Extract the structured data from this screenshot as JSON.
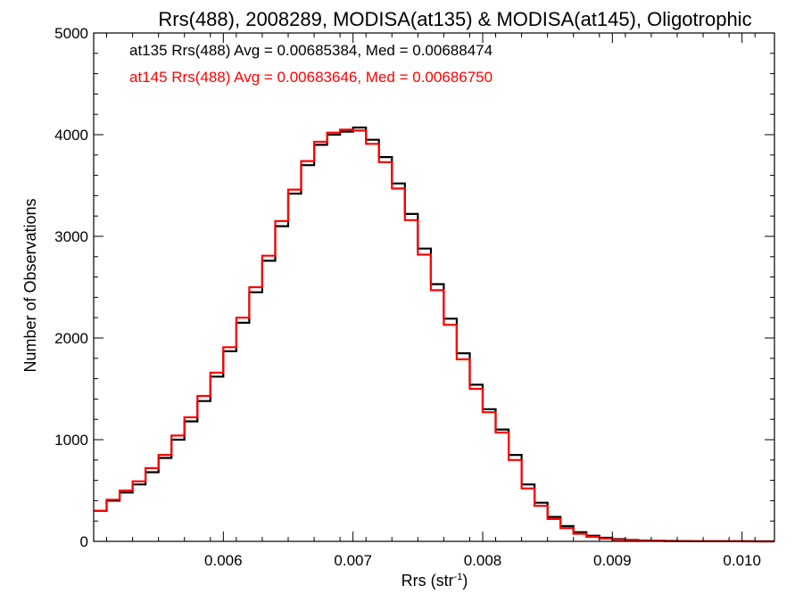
{
  "chart_data": {
    "type": "line",
    "title": "Rrs(488), 2008289, MODISA(at135) & MODISA(at145), Oligotrophic",
    "xlabel": "Rrs (str",
    "xlabel_superscript": "-1",
    "xlabel_suffix": ")",
    "ylabel": "Number of Observations",
    "xlim": [
      0.005,
      0.01025
    ],
    "ylim": [
      0,
      5000
    ],
    "xticks": [
      0.006,
      0.007,
      0.008,
      0.009,
      0.01
    ],
    "xtick_labels": [
      "0.006",
      "0.007",
      "0.008",
      "0.009",
      "0.010"
    ],
    "yticks": [
      0,
      1000,
      2000,
      3000,
      4000,
      5000
    ],
    "ytick_labels": [
      "0",
      "1000",
      "2000",
      "3000",
      "4000",
      "5000"
    ],
    "grid": false,
    "annotations": [
      {
        "text": "at135 Rrs(488) Avg = 0.00685384, Med = 0.00688474",
        "color": "#000000"
      },
      {
        "text": "at145 Rrs(488) Avg = 0.00683646, Med = 0.00686750",
        "color": "#ff0000"
      }
    ],
    "series": [
      {
        "name": "at135",
        "color": "#000000",
        "x": [
          0.005,
          0.0051,
          0.0052,
          0.0053,
          0.0054,
          0.0055,
          0.0056,
          0.0057,
          0.0058,
          0.0059,
          0.006,
          0.0061,
          0.0062,
          0.0063,
          0.0064,
          0.0065,
          0.0066,
          0.0067,
          0.0068,
          0.0069,
          0.007,
          0.0071,
          0.0072,
          0.0073,
          0.0074,
          0.0075,
          0.0076,
          0.0077,
          0.0078,
          0.0079,
          0.008,
          0.0081,
          0.0082,
          0.0083,
          0.0084,
          0.0085,
          0.0086,
          0.0087,
          0.0088,
          0.0089,
          0.009,
          0.0091,
          0.0092,
          0.0093,
          0.0094,
          0.0095,
          0.0096,
          0.0097,
          0.0098,
          0.0099,
          0.01,
          0.0101,
          0.0102
        ],
        "y": [
          300,
          400,
          480,
          560,
          680,
          820,
          1000,
          1180,
          1380,
          1620,
          1870,
          2150,
          2450,
          2760,
          3100,
          3420,
          3700,
          3900,
          4000,
          4030,
          4070,
          3950,
          3780,
          3520,
          3220,
          2880,
          2530,
          2190,
          1850,
          1540,
          1300,
          1100,
          850,
          560,
          380,
          240,
          150,
          90,
          55,
          35,
          22,
          14,
          9,
          6,
          4,
          3,
          2,
          2,
          1,
          1,
          1,
          0,
          0
        ]
      },
      {
        "name": "at145",
        "color": "#ff0000",
        "x": [
          0.005,
          0.0051,
          0.0052,
          0.0053,
          0.0054,
          0.0055,
          0.0056,
          0.0057,
          0.0058,
          0.0059,
          0.006,
          0.0061,
          0.0062,
          0.0063,
          0.0064,
          0.0065,
          0.0066,
          0.0067,
          0.0068,
          0.0069,
          0.007,
          0.0071,
          0.0072,
          0.0073,
          0.0074,
          0.0075,
          0.0076,
          0.0077,
          0.0078,
          0.0079,
          0.008,
          0.0081,
          0.0082,
          0.0083,
          0.0084,
          0.0085,
          0.0086,
          0.0087,
          0.0088,
          0.0089,
          0.009,
          0.0091,
          0.0092,
          0.0093,
          0.0094,
          0.0095,
          0.0096,
          0.0097,
          0.0098,
          0.0099,
          0.01,
          0.0101,
          0.0102
        ],
        "y": [
          300,
          410,
          500,
          590,
          720,
          850,
          1040,
          1220,
          1430,
          1660,
          1910,
          2200,
          2500,
          2810,
          3150,
          3460,
          3740,
          3930,
          4020,
          4050,
          4040,
          3910,
          3730,
          3470,
          3160,
          2820,
          2470,
          2130,
          1790,
          1500,
          1270,
          1070,
          800,
          520,
          350,
          220,
          130,
          75,
          45,
          28,
          17,
          11,
          7,
          5,
          3,
          2,
          2,
          1,
          1,
          1,
          0,
          0,
          0
        ]
      }
    ]
  }
}
